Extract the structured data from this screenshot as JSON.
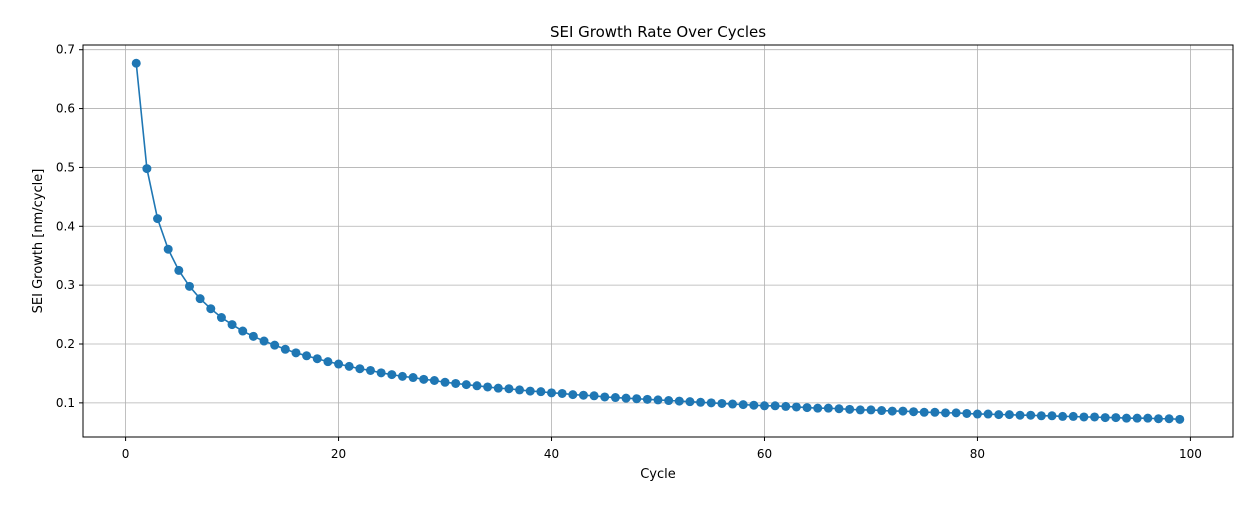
{
  "chart_data": {
    "type": "line",
    "title": "SEI Growth Rate Over Cycles",
    "xlabel": "Cycle",
    "ylabel": "SEI Growth [nm/cycle]",
    "xlim": [
      -4,
      104
    ],
    "ylim": [
      0.042,
      0.708
    ],
    "xticks": [
      0,
      20,
      40,
      60,
      80,
      100
    ],
    "yticks": [
      0.1,
      0.2,
      0.3,
      0.4,
      0.5,
      0.6,
      0.7
    ],
    "grid": true,
    "color": "#1f77b4",
    "series": [
      {
        "marker": "circle",
        "x": [
          1,
          2,
          3,
          4,
          5,
          6,
          7,
          8,
          9,
          10,
          11,
          12,
          13,
          14,
          15,
          16,
          17,
          18,
          19,
          20,
          21,
          22,
          23,
          24,
          25,
          26,
          27,
          28,
          29,
          30,
          31,
          32,
          33,
          34,
          35,
          36,
          37,
          38,
          39,
          40,
          41,
          42,
          43,
          44,
          45,
          46,
          47,
          48,
          49,
          50,
          51,
          52,
          53,
          54,
          55,
          56,
          57,
          58,
          59,
          60,
          61,
          62,
          63,
          64,
          65,
          66,
          67,
          68,
          69,
          70,
          71,
          72,
          73,
          74,
          75,
          76,
          77,
          78,
          79,
          80,
          81,
          82,
          83,
          84,
          85,
          86,
          87,
          88,
          89,
          90,
          91,
          92,
          93,
          94,
          95,
          96,
          97,
          98,
          99
        ],
        "values": [
          0.677,
          0.498,
          0.413,
          0.361,
          0.325,
          0.298,
          0.277,
          0.26,
          0.245,
          0.233,
          0.222,
          0.213,
          0.205,
          0.198,
          0.191,
          0.185,
          0.18,
          0.175,
          0.17,
          0.166,
          0.162,
          0.158,
          0.155,
          0.151,
          0.148,
          0.145,
          0.143,
          0.14,
          0.138,
          0.135,
          0.133,
          0.131,
          0.129,
          0.127,
          0.125,
          0.124,
          0.122,
          0.12,
          0.119,
          0.117,
          0.116,
          0.114,
          0.113,
          0.112,
          0.11,
          0.109,
          0.108,
          0.107,
          0.106,
          0.105,
          0.104,
          0.103,
          0.102,
          0.101,
          0.1,
          0.099,
          0.098,
          0.097,
          0.096,
          0.095,
          0.095,
          0.094,
          0.093,
          0.092,
          0.091,
          0.091,
          0.09,
          0.089,
          0.088,
          0.088,
          0.087,
          0.086,
          0.086,
          0.085,
          0.084,
          0.084,
          0.083,
          0.083,
          0.082,
          0.081,
          0.081,
          0.08,
          0.08,
          0.079,
          0.079,
          0.078,
          0.078,
          0.077,
          0.077,
          0.076,
          0.076,
          0.075,
          0.075,
          0.074,
          0.074,
          0.074,
          0.073,
          0.073,
          0.072
        ]
      }
    ]
  }
}
